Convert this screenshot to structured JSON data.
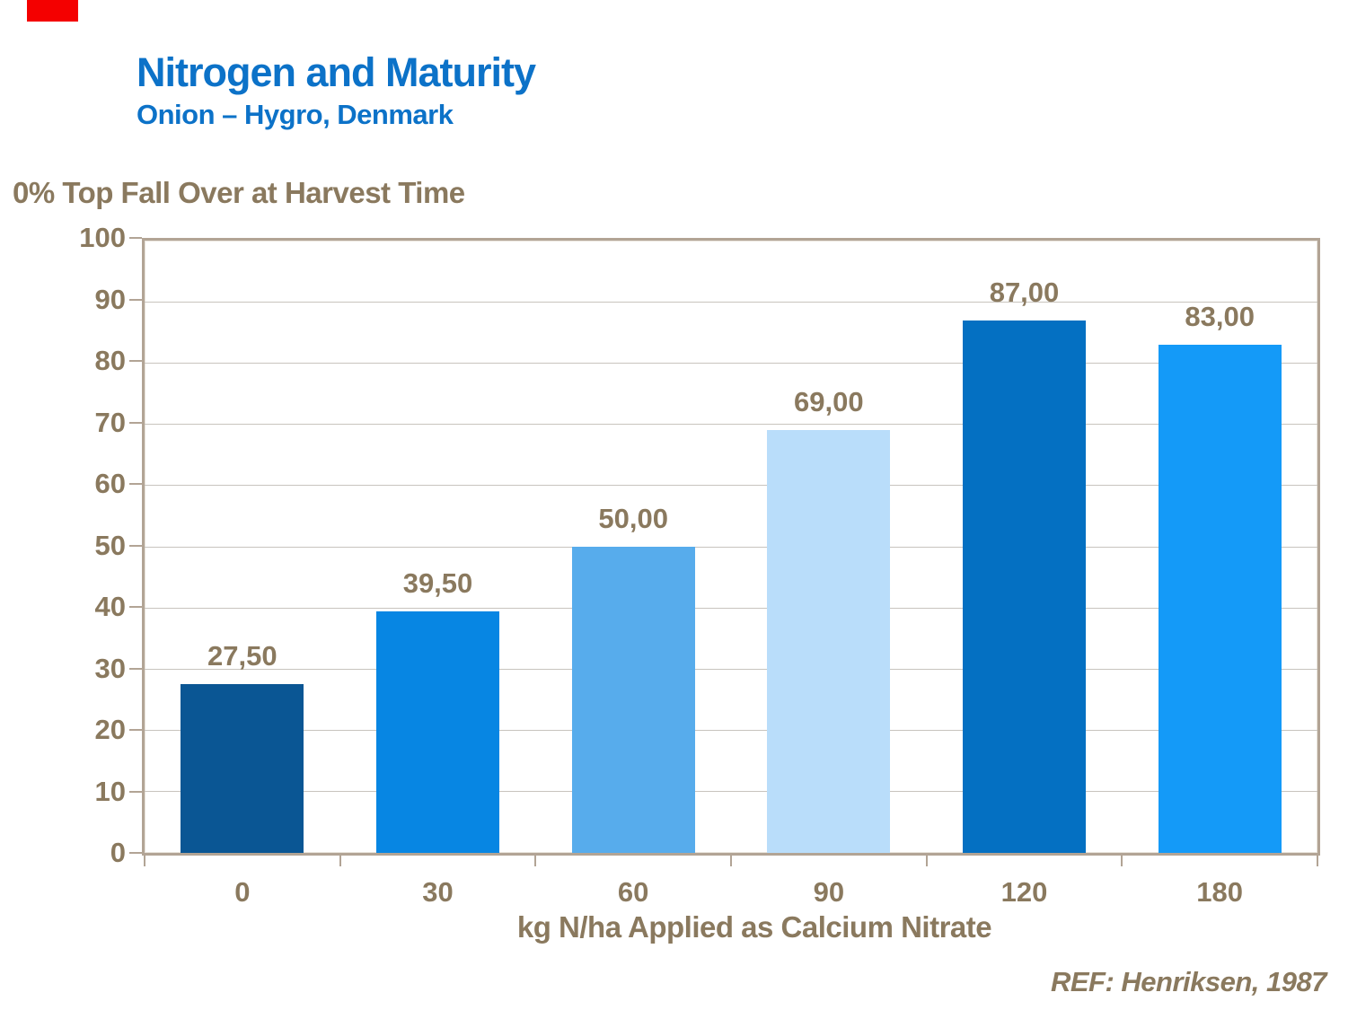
{
  "header": {
    "title": "Nitrogen and Maturity",
    "subtitle": "Onion – Hygro, Denmark"
  },
  "footer": {
    "reference": "REF: Henriksen, 1987"
  },
  "colors": {
    "title_blue": "#0C72C8",
    "text_taupe": "#8A795E",
    "axis_taupe": "#B2A495",
    "gridline_gray": "#C8C4BE",
    "corner_marker_red": "#F40000"
  },
  "chart_data": {
    "type": "bar",
    "title": "Nitrogen and Maturity",
    "subtitle": "Onion – Hygro, Denmark",
    "ylabel": "0% Top Fall Over at Harvest Time",
    "xlabel": "kg N/ha Applied as Calcium Nitrate",
    "categories": [
      "0",
      "30",
      "60",
      "90",
      "120",
      "180"
    ],
    "values": [
      27.5,
      39.5,
      50.0,
      69.0,
      87.0,
      83.0
    ],
    "value_labels": [
      "27,50",
      "39,50",
      "50,00",
      "69,00",
      "87,00",
      "83,00"
    ],
    "bar_colors": [
      "#0A5694",
      "#0786E3",
      "#57ACEC",
      "#B9DDFA",
      "#0470C2",
      "#149AF8"
    ],
    "ylim": [
      0,
      100
    ],
    "yticks": [
      0,
      10,
      20,
      30,
      40,
      50,
      60,
      70,
      80,
      90,
      100
    ],
    "grid": true,
    "legend": false,
    "annotation": "REF: Henriksen, 1987"
  }
}
